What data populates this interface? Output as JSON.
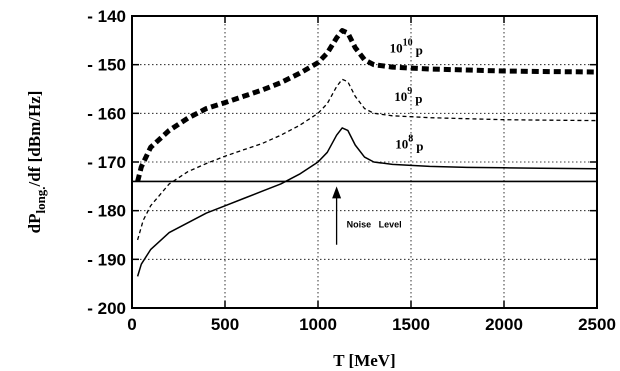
{
  "chart_data": {
    "type": "line",
    "xlabel": "T  [MeV]",
    "ylabel": "dP_long./df  [dBm/Hz]",
    "ylabel_parts": {
      "main": "dP",
      "sub": "long.",
      "rest": "/df  [dBm/Hz]"
    },
    "xlim": [
      0,
      2500
    ],
    "ylim": [
      -200,
      -140
    ],
    "xticks": [
      0,
      500,
      1000,
      1500,
      2000,
      2500
    ],
    "yticks": [
      -200,
      -190,
      -180,
      -170,
      -160,
      -150,
      -140
    ],
    "grid": true,
    "series": [
      {
        "label_base": "10",
        "label_exp": "10",
        "label_suffix": "p",
        "style": "thick-dashed",
        "points": [
          [
            30,
            -174
          ],
          [
            50,
            -171
          ],
          [
            100,
            -167
          ],
          [
            200,
            -163.5
          ],
          [
            300,
            -161
          ],
          [
            400,
            -159
          ],
          [
            500,
            -157.8
          ],
          [
            600,
            -156.5
          ],
          [
            700,
            -155.2
          ],
          [
            800,
            -153.7
          ],
          [
            900,
            -151.8
          ],
          [
            1000,
            -149.6
          ],
          [
            1050,
            -147.6
          ],
          [
            1100,
            -144.5
          ],
          [
            1130,
            -143
          ],
          [
            1160,
            -143.5
          ],
          [
            1200,
            -146.5
          ],
          [
            1250,
            -149
          ],
          [
            1300,
            -150
          ],
          [
            1400,
            -150.5
          ],
          [
            1500,
            -150.7
          ],
          [
            1600,
            -150.9
          ],
          [
            1800,
            -151.1
          ],
          [
            2000,
            -151.3
          ],
          [
            2200,
            -151.4
          ],
          [
            2500,
            -151.5
          ]
        ]
      },
      {
        "label_base": "10",
        "label_exp": "9",
        "label_suffix": "p",
        "style": "thin-dashed",
        "points": [
          [
            30,
            -186
          ],
          [
            60,
            -182
          ],
          [
            100,
            -179
          ],
          [
            200,
            -174.5
          ],
          [
            300,
            -172
          ],
          [
            400,
            -170.3
          ],
          [
            500,
            -168.8
          ],
          [
            600,
            -167.5
          ],
          [
            700,
            -166.2
          ],
          [
            800,
            -164.5
          ],
          [
            900,
            -162.5
          ],
          [
            1000,
            -160
          ],
          [
            1050,
            -158
          ],
          [
            1100,
            -154.5
          ],
          [
            1130,
            -153
          ],
          [
            1160,
            -153.5
          ],
          [
            1200,
            -156.5
          ],
          [
            1250,
            -159
          ],
          [
            1300,
            -160
          ],
          [
            1400,
            -160.5
          ],
          [
            1500,
            -160.7
          ],
          [
            1600,
            -160.9
          ],
          [
            1800,
            -161.1
          ],
          [
            2000,
            -161.3
          ],
          [
            2200,
            -161.4
          ],
          [
            2500,
            -161.5
          ]
        ]
      },
      {
        "label_base": "10",
        "label_exp": "8",
        "label_suffix": "p",
        "style": "solid",
        "points": [
          [
            30,
            -193.5
          ],
          [
            50,
            -191
          ],
          [
            100,
            -188
          ],
          [
            200,
            -184.5
          ],
          [
            300,
            -182.5
          ],
          [
            400,
            -180.5
          ],
          [
            500,
            -179
          ],
          [
            600,
            -177.5
          ],
          [
            700,
            -176
          ],
          [
            800,
            -174.5
          ],
          [
            900,
            -172.5
          ],
          [
            1000,
            -170
          ],
          [
            1050,
            -168
          ],
          [
            1100,
            -164.5
          ],
          [
            1130,
            -163
          ],
          [
            1160,
            -163.5
          ],
          [
            1200,
            -166.5
          ],
          [
            1250,
            -169
          ],
          [
            1300,
            -170
          ],
          [
            1400,
            -170.5
          ],
          [
            1500,
            -170.7
          ],
          [
            1600,
            -170.9
          ],
          [
            1800,
            -171.1
          ],
          [
            2000,
            -171.2
          ],
          [
            2200,
            -171.3
          ],
          [
            2500,
            -171.4
          ]
        ]
      }
    ],
    "noise_level": {
      "y": -174,
      "label": "Noise   Level",
      "arrow_x": 1100,
      "arrow_from_y": -187,
      "arrow_to_y": -175
    }
  }
}
